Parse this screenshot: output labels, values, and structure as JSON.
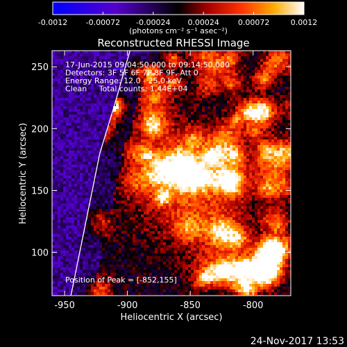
{
  "colorbar": {
    "ticks": [
      "-0.0012",
      "-0.00072",
      "-0.00024",
      "0.00024",
      "0.00072",
      "0.0012"
    ],
    "unit_label": "(photons cm⁻² s⁻¹ asec⁻²)",
    "range": [
      -0.0012,
      0.0012
    ]
  },
  "footer": {
    "date": "24-Nov-2017 13:53"
  },
  "chart_data": {
    "type": "heatmap",
    "title": "Reconstructed RHESSI Image",
    "xlabel": "Heliocentric X (arcsec)",
    "ylabel": "Heliocentric Y (arcsec)",
    "xlim": [
      -960,
      -770
    ],
    "ylim": [
      65,
      263
    ],
    "xticks": [
      "-950",
      "-900",
      "-850",
      "-800"
    ],
    "yticks": [
      "100",
      "150",
      "200",
      "250"
    ],
    "annotations": [
      "17-Jun-2015 09:04:50.000 to 09:14:50.000",
      "Detectors: 3F 5F 6F 7F 8F 9F, Att 0",
      "Energy Range: 12.0 - 25.0 keV",
      "Clean     Total counts: 1.44E+04"
    ],
    "peak_label": "Position of Peak = [-852,155]",
    "peak": {
      "x": -852,
      "y": 155
    },
    "colormap": "blue-purple-black-red-orange-yellow-white",
    "value_range": [
      -0.0012,
      0.0012
    ],
    "limb_curve": [
      [
        -945,
        65
      ],
      [
        -938,
        100
      ],
      [
        -930,
        140
      ],
      [
        -922,
        180
      ],
      [
        -910,
        220
      ],
      [
        -898,
        263
      ]
    ]
  }
}
